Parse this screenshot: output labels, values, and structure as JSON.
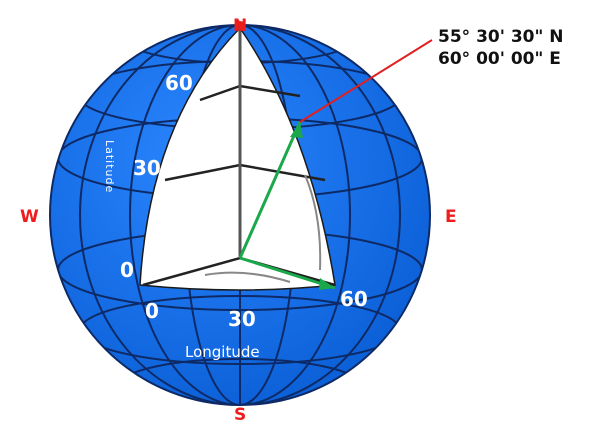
{
  "diagram": {
    "coordinate_label": {
      "latitude": "55° 30' 30\" N",
      "longitude": "60° 00' 00\" E"
    },
    "compass": {
      "north": "N",
      "south": "S",
      "west": "W",
      "east": "E"
    },
    "latitude_ticks": [
      "0",
      "30",
      "60"
    ],
    "longitude_ticks": [
      "0",
      "30",
      "60"
    ],
    "latitude_axis_label": "Latitude",
    "longitude_axis_label": "Longitude",
    "colors": {
      "sphere": "#1a73e8",
      "grid": "#0d2a66",
      "vector": "#1aa84a",
      "pointer": "#e02020",
      "frame": "#222222"
    }
  }
}
